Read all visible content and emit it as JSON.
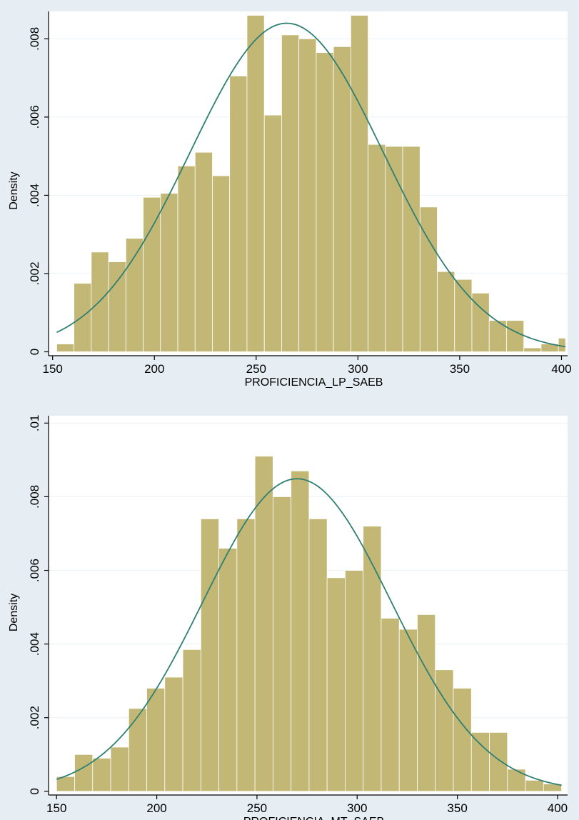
{
  "colors": {
    "bar": "#c2b774",
    "bar_edge": "#ffffff",
    "curve": "#2f7f73",
    "plot_bg": "#ffffff",
    "outer_bg": "#e7eef3",
    "grid": "#eaf0f4"
  },
  "chart_data": [
    {
      "type": "bar",
      "subtype": "histogram_with_normal_density_curve",
      "xlabel": "PROFICIENCIA_LP_SAEB",
      "ylabel": "Density",
      "xlim": [
        148,
        403
      ],
      "ylim": [
        -0.0001,
        0.0087
      ],
      "xticks": [
        150,
        200,
        250,
        300,
        350,
        400
      ],
      "xtick_labels": [
        "150",
        "200",
        "250",
        "300",
        "350",
        "400"
      ],
      "yticks": [
        0,
        0.002,
        0.004,
        0.006,
        0.008
      ],
      "ytick_labels": [
        "0",
        ".002",
        ".004",
        ".006",
        ".008"
      ],
      "grid": "horizontal",
      "bin_edges": [
        152,
        160.5,
        169,
        177.5,
        186,
        194.5,
        203,
        211.5,
        220,
        228.5,
        237,
        245.5,
        254,
        262.5,
        271,
        279.5,
        288,
        296.5,
        305,
        313.5,
        322,
        330.5,
        339,
        347.5,
        356,
        364.5,
        373,
        381.5,
        390,
        398.5,
        402
      ],
      "values": [
        0.0002,
        0.00175,
        0.00255,
        0.0023,
        0.0029,
        0.00395,
        0.00405,
        0.00475,
        0.0051,
        0.0045,
        0.00705,
        0.0086,
        0.00605,
        0.0081,
        0.008,
        0.00765,
        0.0078,
        0.0086,
        0.0053,
        0.00525,
        0.00525,
        0.0037,
        0.00205,
        0.00185,
        0.0015,
        0.0008,
        0.0008,
        0.0001,
        0.0002,
        0.00035
      ],
      "normal_curve": {
        "mean": 265,
        "sd": 47.5,
        "x_from": 152,
        "x_to": 402
      }
    },
    {
      "type": "bar",
      "subtype": "histogram_with_normal_density_curve",
      "xlabel": "PROFICIENCIA_MT_SAEB",
      "ylabel": "Density",
      "xlim": [
        146,
        405
      ],
      "ylim": [
        -0.0001,
        0.0102
      ],
      "xticks": [
        150,
        200,
        250,
        300,
        350,
        400
      ],
      "xtick_labels": [
        "150",
        "200",
        "250",
        "300",
        "350",
        "400"
      ],
      "yticks": [
        0,
        0.002,
        0.004,
        0.006,
        0.008,
        0.01
      ],
      "ytick_labels": [
        "0",
        ".002",
        ".004",
        ".006",
        ".008",
        ".01"
      ],
      "grid": "horizontal",
      "bin_edges": [
        150,
        159,
        168,
        177,
        186,
        195,
        204,
        213,
        222,
        231,
        240,
        249,
        258,
        267,
        276,
        285,
        294,
        303,
        312,
        321,
        330,
        339,
        348,
        357,
        366,
        375,
        384,
        393,
        402
      ],
      "values": [
        0.0004,
        0.001,
        0.0009,
        0.0012,
        0.00225,
        0.0028,
        0.0031,
        0.00385,
        0.0074,
        0.0066,
        0.0074,
        0.0091,
        0.008,
        0.0087,
        0.0074,
        0.0058,
        0.006,
        0.0072,
        0.0047,
        0.0044,
        0.0048,
        0.0033,
        0.0028,
        0.0016,
        0.0016,
        0.0006,
        0.0003,
        0.0002
      ],
      "normal_curve": {
        "mean": 270,
        "sd": 47,
        "x_from": 150,
        "x_to": 402
      }
    }
  ]
}
